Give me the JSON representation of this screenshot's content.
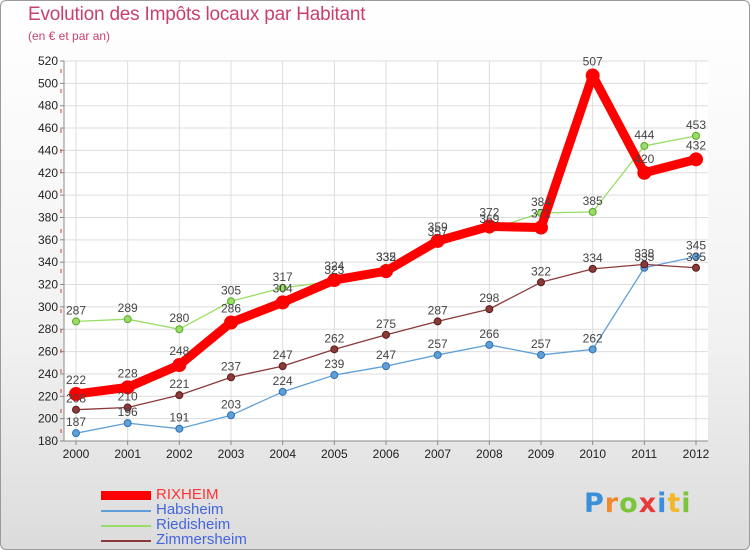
{
  "header": {
    "title": "Evolution des Impôts locaux par Habitant",
    "subtitle": "(en € et par an)"
  },
  "chart_data": {
    "type": "line",
    "title": "Evolution des Impôts locaux par Habitant",
    "subtitle": "(en € et par an)",
    "xlabel": "",
    "ylabel": "",
    "ylim": [
      180,
      520
    ],
    "yticks": [
      180,
      200,
      220,
      240,
      260,
      280,
      300,
      320,
      340,
      360,
      380,
      400,
      420,
      440,
      460,
      480,
      500,
      520
    ],
    "categories": [
      "2000",
      "2001",
      "2002",
      "2003",
      "2004",
      "2005",
      "2006",
      "2007",
      "2008",
      "2009",
      "2010",
      "2011",
      "2012"
    ],
    "grid": true,
    "legend_position": "bottom-left",
    "series": [
      {
        "name": "Habsheim",
        "color": "#5fa0d8",
        "values": [
          187,
          196,
          191,
          203,
          224,
          239,
          247,
          257,
          266,
          257,
          262,
          335,
          345
        ],
        "labels": [
          "187",
          "196",
          "191",
          "203",
          "224",
          "239",
          "247",
          "257",
          "266",
          "257",
          "262",
          "335",
          "345"
        ]
      },
      {
        "name": "Riedisheim",
        "color": "#99dd66",
        "values": [
          287,
          289,
          280,
          305,
          317,
          323,
          335,
          357,
          369,
          384,
          385,
          444,
          453
        ],
        "labels": [
          "287",
          "289",
          "280",
          "305",
          "317",
          "323",
          "335",
          "357",
          "369",
          "384",
          "385",
          "444",
          "453"
        ]
      },
      {
        "name": "Zimmersheim",
        "color": "#8b3a3a",
        "values": [
          208,
          210,
          221,
          237,
          247,
          262,
          275,
          287,
          298,
          322,
          334,
          338,
          335
        ],
        "labels": [
          "208",
          "210",
          "221",
          "237",
          "247",
          "262",
          "275",
          "287",
          "298",
          "322",
          "334",
          "338",
          "335"
        ]
      },
      {
        "name": "RIXHEIM",
        "color": "#ff0000",
        "values": [
          222,
          228,
          248,
          286,
          304,
          324,
          332,
          359,
          372,
          371,
          507,
          420,
          432
        ],
        "labels": [
          "222",
          "228",
          "248",
          "286",
          "304",
          "324",
          "332",
          "359",
          "372",
          "371",
          "507",
          "420",
          "432"
        ]
      }
    ]
  },
  "legend": {
    "items": [
      {
        "label": "RIXHEIM",
        "color": "#ff0000",
        "text_color": "#ff3333"
      },
      {
        "label": "Habsheim",
        "color": "#5fa0d8",
        "text_color": "#4466dd"
      },
      {
        "label": "Riedisheim",
        "color": "#99dd66",
        "text_color": "#4466dd"
      },
      {
        "label": "Zimmersheim",
        "color": "#8b3a3a",
        "text_color": "#4466dd"
      }
    ]
  },
  "logo": {
    "text": "Proxiti"
  }
}
